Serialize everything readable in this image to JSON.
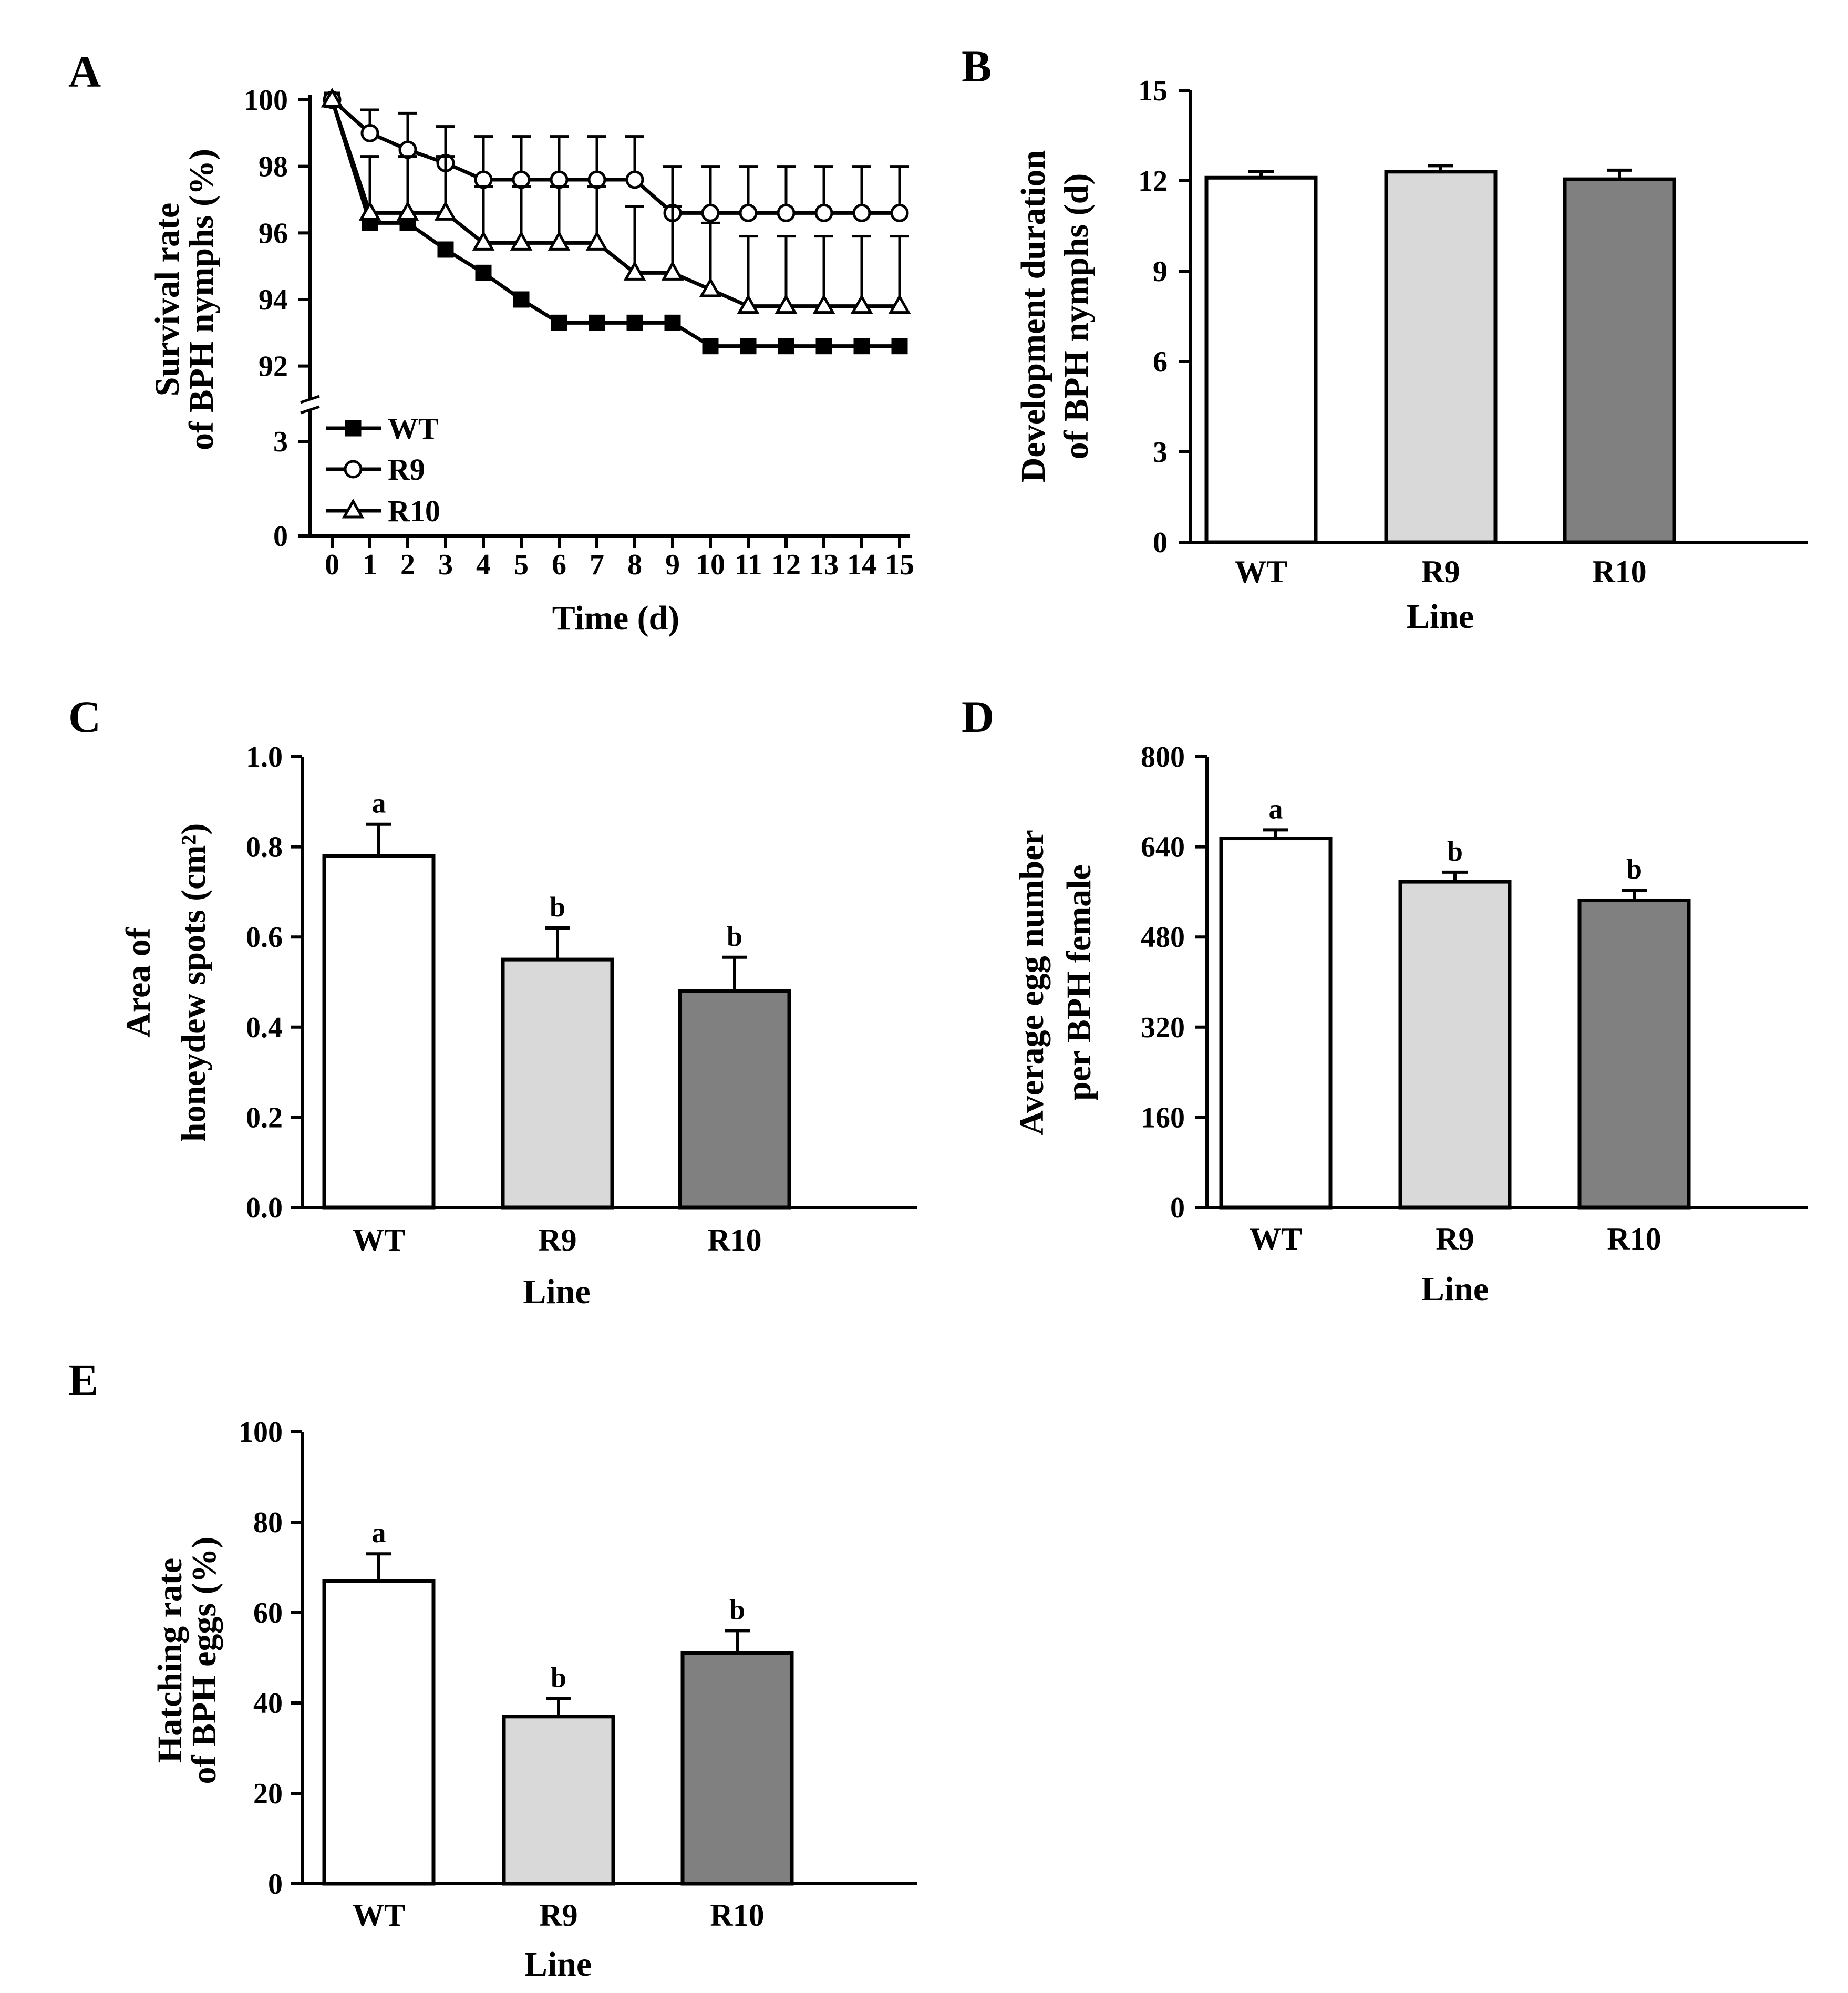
{
  "chart_data": [
    {
      "id": "A",
      "panel_letter": "A",
      "type": "line",
      "xlabel": "Time (d)",
      "ylabel": [
        "Survival rate",
        "of BPH nymphs (%)"
      ],
      "x": [
        0,
        1,
        2,
        3,
        4,
        5,
        6,
        7,
        8,
        9,
        10,
        11,
        12,
        13,
        14,
        15
      ],
      "xticks": [
        "0",
        "1",
        "2",
        "3",
        "4",
        "5",
        "6",
        "7",
        "8",
        "9",
        "10",
        "11",
        "12",
        "13",
        "14",
        "15"
      ],
      "yticks_upper": [
        "92",
        "94",
        "96",
        "98",
        "100"
      ],
      "yticks_lower": [
        "0",
        "3"
      ],
      "ylim_upper": [
        91,
        100
      ],
      "ylim_lower": [
        0,
        4
      ],
      "axis_break": true,
      "legend_position": "lower-left",
      "series": [
        {
          "name": "WT",
          "marker": "filled-square",
          "values": [
            100,
            96.3,
            96.3,
            95.5,
            94.8,
            94.0,
            93.3,
            93.3,
            93.3,
            93.3,
            92.6,
            92.6,
            92.6,
            92.6,
            92.6,
            92.6
          ],
          "errors": [
            0,
            0,
            0,
            0,
            0,
            0,
            0,
            0,
            0,
            0,
            0,
            0,
            0,
            0,
            0,
            0
          ]
        },
        {
          "name": "R9",
          "marker": "open-circle",
          "values": [
            100,
            99.0,
            98.5,
            98.1,
            97.6,
            97.6,
            97.6,
            97.6,
            97.6,
            96.6,
            96.6,
            96.6,
            96.6,
            96.6,
            96.6,
            96.6
          ],
          "errors": [
            0,
            0.7,
            1.1,
            1.1,
            1.3,
            1.3,
            1.3,
            1.3,
            1.3,
            1.4,
            1.4,
            1.4,
            1.4,
            1.4,
            1.4,
            1.4
          ]
        },
        {
          "name": "R10",
          "marker": "open-triangle",
          "values": [
            100,
            96.6,
            96.6,
            96.6,
            95.7,
            95.7,
            95.7,
            95.7,
            94.8,
            94.8,
            94.3,
            93.8,
            93.8,
            93.8,
            93.8,
            93.8
          ],
          "errors": [
            0,
            1.7,
            1.7,
            1.7,
            1.7,
            1.7,
            1.7,
            1.7,
            2.0,
            2.0,
            2.0,
            2.1,
            2.1,
            2.1,
            2.1,
            2.1
          ]
        }
      ]
    },
    {
      "id": "B",
      "panel_letter": "B",
      "type": "bar",
      "xlabel": "Line",
      "ylabel": [
        "Development duration",
        "of BPH nymphs (d)"
      ],
      "categories": [
        "WT",
        "R9",
        "R10"
      ],
      "values": [
        12.1,
        12.3,
        12.05
      ],
      "errors": [
        0.2,
        0.2,
        0.3
      ],
      "letters": [
        "",
        "",
        ""
      ],
      "colors": [
        "#ffffff",
        "#d9d9d9",
        "#808080"
      ],
      "ylim": [
        0,
        15
      ],
      "yticks": [
        "0",
        "3",
        "6",
        "9",
        "12",
        "15"
      ]
    },
    {
      "id": "C",
      "panel_letter": "C",
      "type": "bar",
      "xlabel": "Line",
      "ylabel": [
        "Area of",
        "honeydew spots (cm²)"
      ],
      "categories": [
        "WT",
        "R9",
        "R10"
      ],
      "values": [
        0.78,
        0.55,
        0.48
      ],
      "errors": [
        0.07,
        0.07,
        0.075
      ],
      "letters": [
        "a",
        "b",
        "b"
      ],
      "colors": [
        "#ffffff",
        "#d9d9d9",
        "#808080"
      ],
      "ylim": [
        0,
        1.0
      ],
      "yticks": [
        "0.0",
        "0.2",
        "0.4",
        "0.6",
        "0.8",
        "1.0"
      ]
    },
    {
      "id": "D",
      "panel_letter": "D",
      "type": "bar",
      "xlabel": "Line",
      "ylabel": [
        "Average egg number",
        "per BPH female"
      ],
      "categories": [
        "WT",
        "R9",
        "R10"
      ],
      "values": [
        655,
        578,
        545
      ],
      "errors": [
        15,
        17,
        18
      ],
      "letters": [
        "a",
        "b",
        "b"
      ],
      "colors": [
        "#ffffff",
        "#d9d9d9",
        "#808080"
      ],
      "ylim": [
        0,
        800
      ],
      "yticks": [
        "0",
        "160",
        "320",
        "480",
        "640",
        "800"
      ]
    },
    {
      "id": "E",
      "panel_letter": "E",
      "type": "bar",
      "xlabel": "Line",
      "ylabel": [
        "Hatching rate",
        "of BPH eggs (%)"
      ],
      "categories": [
        "WT",
        "R9",
        "R10"
      ],
      "values": [
        67,
        37,
        51
      ],
      "errors": [
        6,
        4,
        5
      ],
      "letters": [
        "a",
        "b",
        "b"
      ],
      "colors": [
        "#ffffff",
        "#d9d9d9",
        "#808080"
      ],
      "ylim": [
        0,
        100
      ],
      "yticks": [
        "0",
        "20",
        "40",
        "60",
        "80",
        "100"
      ]
    }
  ]
}
